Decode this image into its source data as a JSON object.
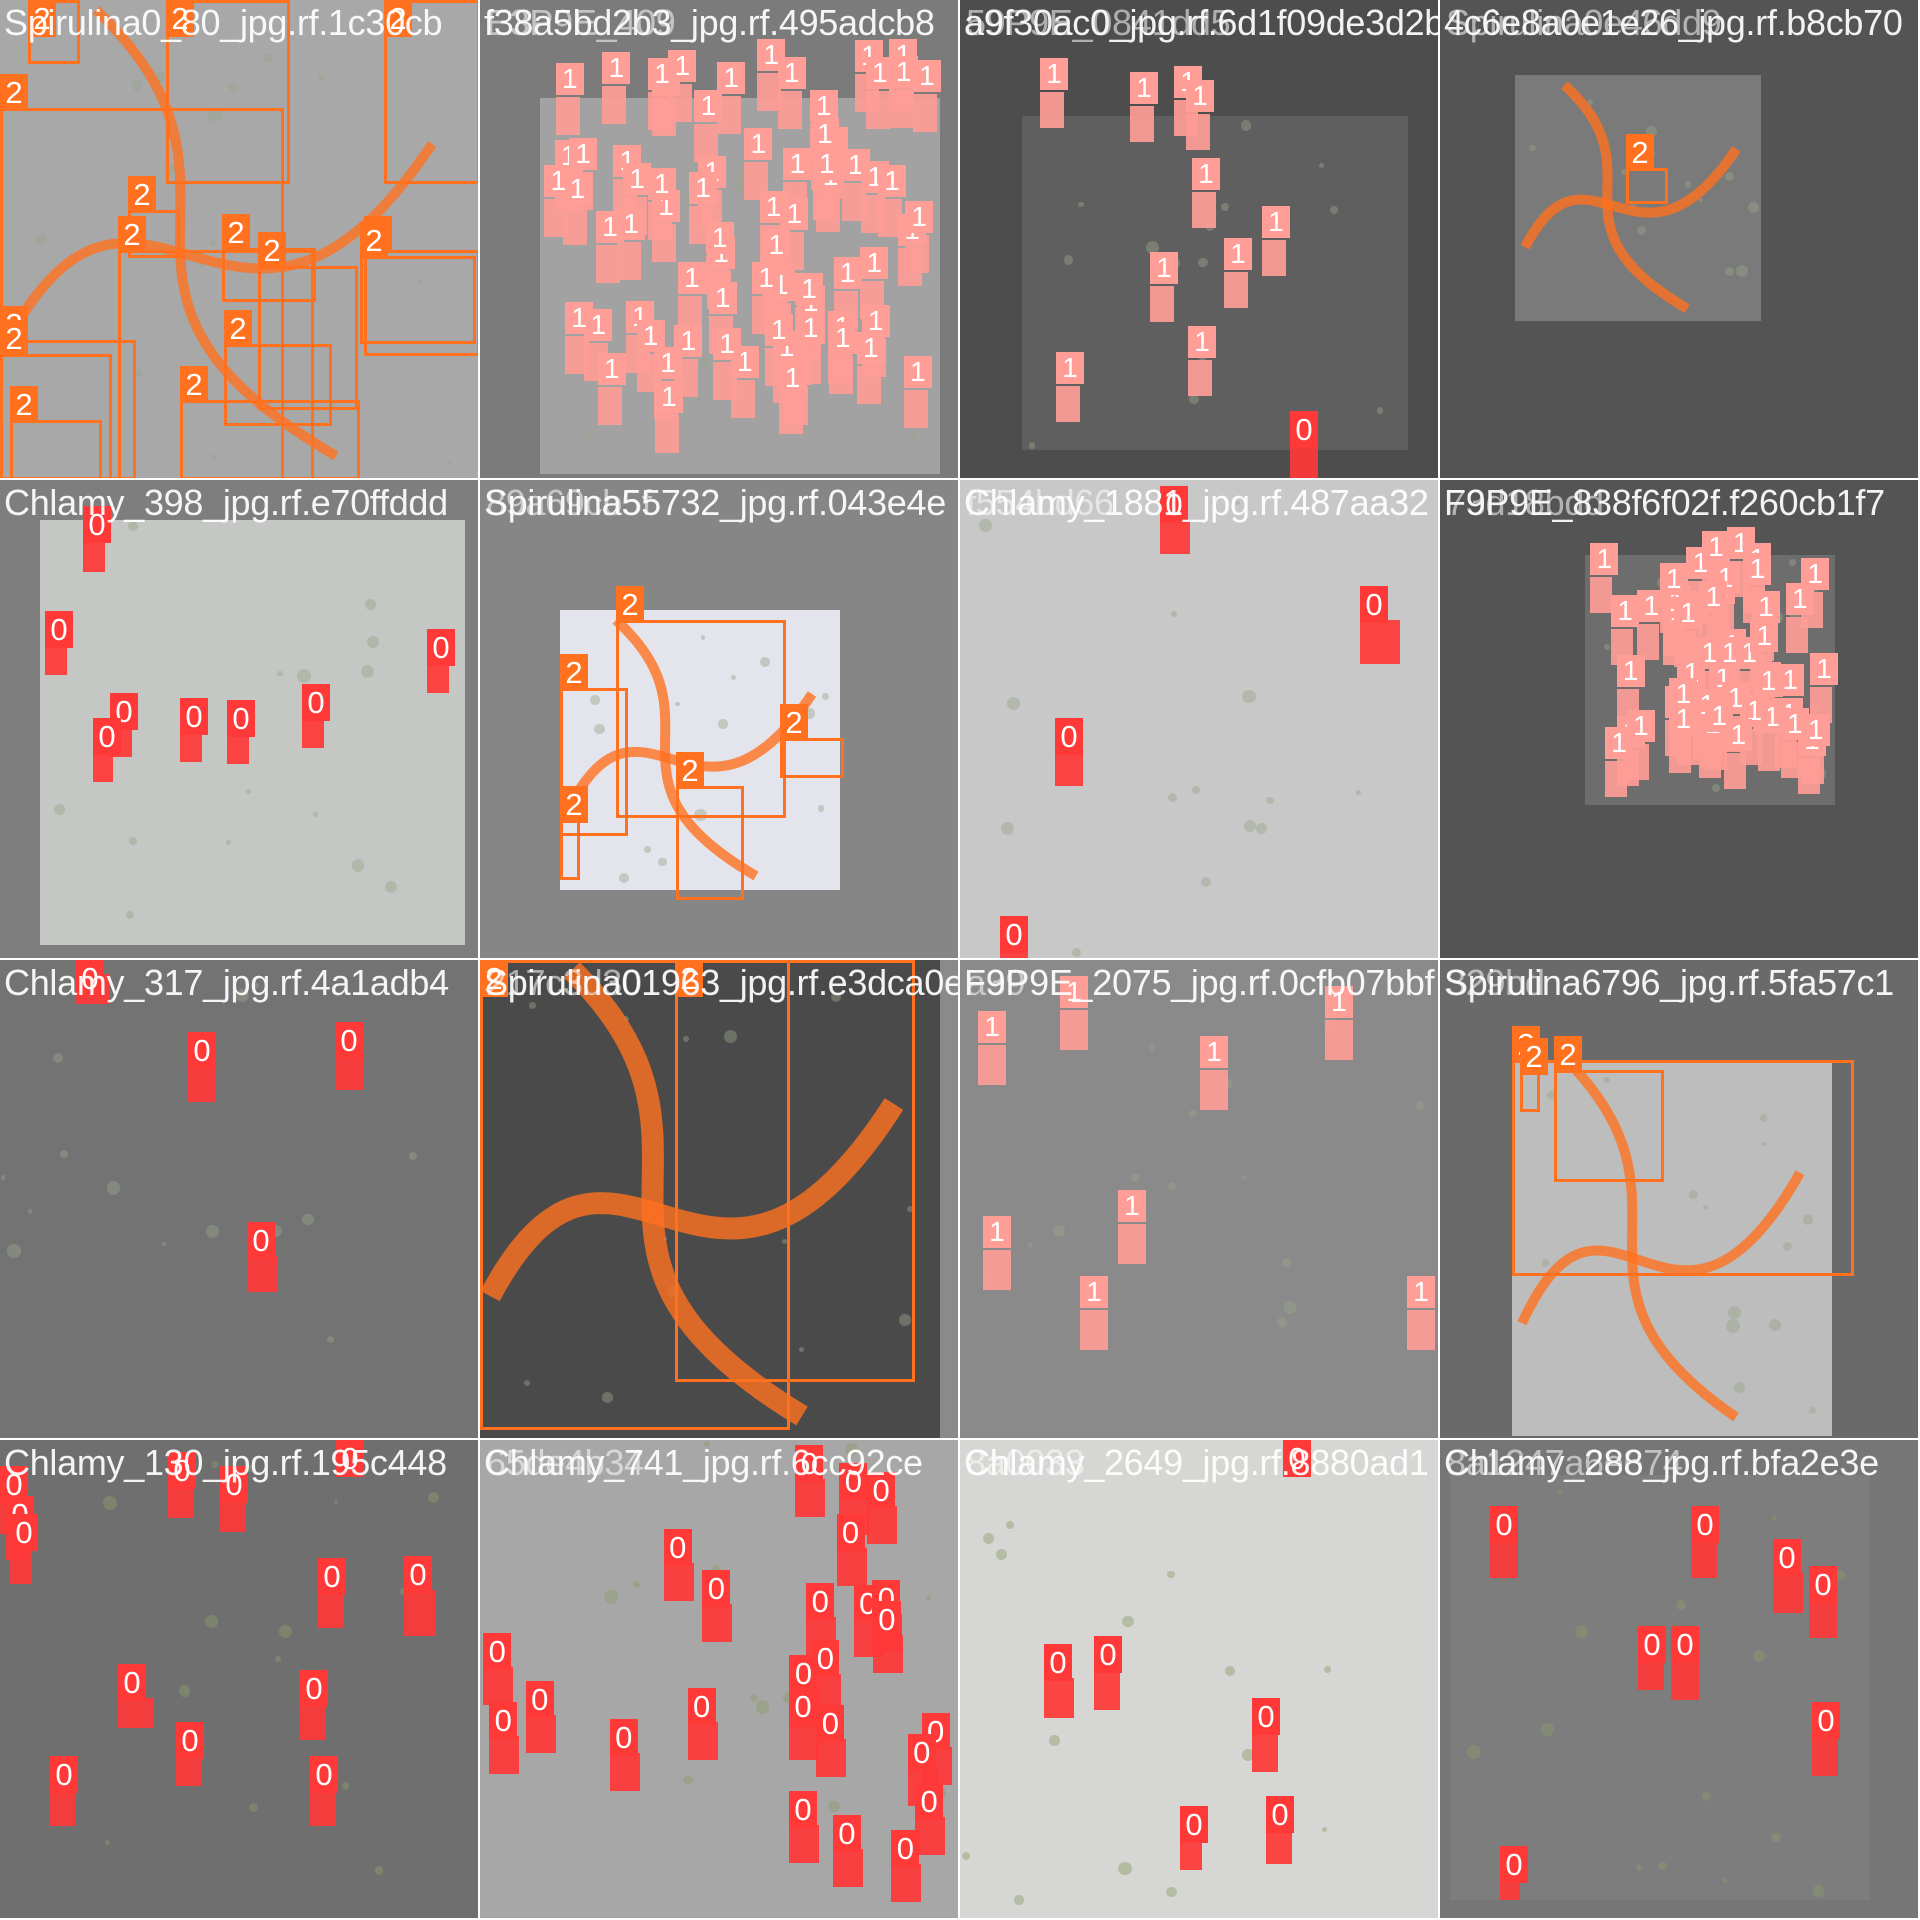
{
  "mosaic": {
    "colors": {
      "class_0": "#ff3838",
      "class_1": "#ff9d97",
      "class_2": "#ff701f",
      "label_text": "#ffffff",
      "title_text": "#ffffff"
    },
    "tiles": [
      {
        "title": "Spirulina0_80_jpg.rf.1c30cb",
        "title2": "",
        "bg": "#8a8a8a",
        "labels": [
          "2",
          "2",
          "2",
          "2",
          "2",
          "2",
          "2",
          "2",
          "2",
          "2",
          "2",
          "2",
          "2",
          "2",
          "2"
        ]
      },
      {
        "title": "f38a5bd2b3_jpg.rf.495adcb8",
        "title2": "E3P9E_409",
        "bg": "#7b7b7b",
        "labels": [
          "1",
          "1",
          "1",
          "1",
          "1",
          "1",
          "1",
          "1",
          "1",
          "1",
          "1",
          "1",
          "1",
          "1",
          "1",
          "1",
          "1",
          "1",
          "1",
          "1",
          "1",
          "1",
          "1",
          "1",
          "1",
          "1",
          "1",
          "1",
          "1",
          "1",
          "1",
          "1",
          "1",
          "1",
          "1",
          "1",
          "1",
          "1",
          "1",
          "1",
          "1",
          "1",
          "1",
          "1",
          "1",
          "1",
          "1",
          "1",
          "1",
          "1",
          "1",
          "1",
          "1",
          "1",
          "1",
          "1",
          "1",
          "1",
          "1",
          "1",
          "1",
          "1",
          "1",
          "1",
          "1",
          "1",
          "1",
          "1",
          "1",
          "1",
          "1",
          "1"
        ]
      },
      {
        "title": "a9f30ac0_jpg.rf.6d1f09de3d2b",
        "title2": "59P9E_0841dd5",
        "bg": "#4d4d4d",
        "labels": [
          "1",
          "1",
          "1",
          "1",
          "1",
          "1",
          "1",
          "1",
          "1",
          "1",
          "0"
        ]
      },
      {
        "title": "4c6e8a0e1e26_jpg.rf.b8cb70",
        "title2": "Spirulina0e46dd9",
        "bg": "#545454",
        "labels": [
          "2"
        ]
      },
      {
        "title": "Chlamy_398_jpg.rf.e70ffddd",
        "title2": "",
        "bg": "#7e7e7e",
        "labels": [
          "0",
          "0",
          "0",
          "0",
          "0",
          "0",
          "0",
          "0"
        ]
      },
      {
        "title": "Spirulina55732_jpg.rf.043e4e",
        "title2": "89a69cb5f",
        "bg": "#868686",
        "labels": [
          "2",
          "2",
          "2",
          "2",
          "2"
        ]
      },
      {
        "title": "Chlamy_1881_jpg.rf.487aa32",
        "title2": "f554bd66",
        "bg": "#8e8e8e",
        "labels": [
          "0",
          "0",
          "0",
          "0"
        ]
      },
      {
        "title": "F9P9E_838f6f02f.f260cb1f7",
        "title2": "73d18bdd",
        "bg": "#545454",
        "labels": [
          "1",
          "1",
          "1",
          "1",
          "1",
          "1",
          "1",
          "1",
          "1",
          "1",
          "1",
          "1",
          "1",
          "1",
          "1",
          "1",
          "1",
          "1",
          "1",
          "1",
          "1",
          "1",
          "1",
          "1",
          "1",
          "1",
          "1",
          "1",
          "1",
          "1",
          "1",
          "1",
          "1",
          "1",
          "1",
          "1",
          "1",
          "1",
          "1",
          "1",
          "1",
          "1",
          "1",
          "1",
          "1",
          "1",
          "1",
          "1",
          "1",
          "1"
        ]
      },
      {
        "title": "Chlamy_317_jpg.rf.4a1adb4",
        "title2": "",
        "bg": "#6e6e6e",
        "labels": [
          "0",
          "0",
          "0",
          "0"
        ]
      },
      {
        "title": "Spirulina01963_jpg.rf.e3dca0e",
        "title2": "217c3d30",
        "bg": "#8a8a8a",
        "labels": [
          "2",
          "2"
        ]
      },
      {
        "title": "F9P9E_2075_jpg.rf.0cfb07bbf",
        "title2": "a39",
        "bg": "#747474",
        "labels": [
          "1",
          "1",
          "1",
          "1",
          "1",
          "1",
          "1",
          "1"
        ]
      },
      {
        "title": "Spirulina6796_jpg.rf.5fa57c1",
        "title2": "329bd",
        "bg": "#6a6a6a",
        "labels": [
          "2",
          "2",
          "2"
        ]
      },
      {
        "title": "Chlamy_130_jpg.rf.195c448",
        "title2": "",
        "bg": "#6a6a6a",
        "labels": [
          "0",
          "0",
          "0",
          "0",
          "0",
          "0",
          "0",
          "0",
          "0",
          "0",
          "0",
          "0",
          "0"
        ]
      },
      {
        "title": "Chlamy_741_jpg.rf.6cc92ce",
        "title2": "65de4b34",
        "bg": "#8d8d8d",
        "labels": [
          "0",
          "0",
          "0",
          "0",
          "0",
          "0",
          "0",
          "0",
          "0",
          "0",
          "0",
          "0",
          "0",
          "0",
          "0",
          "0",
          "0",
          "0",
          "0",
          "0",
          "0",
          "0",
          "0",
          "0",
          "0"
        ]
      },
      {
        "title": "Chlamy_2649_jpg.rf.8880ad1",
        "title2": "8a0033",
        "bg": "#cfcfcf",
        "labels": [
          "0",
          "0",
          "0",
          "0",
          "0",
          "0"
        ]
      },
      {
        "title": "Chlamy_288_jpg.rf.bfa2e3e",
        "title2": "8a1247a6e674",
        "bg": "#767676",
        "labels": [
          "0",
          "0",
          "0",
          "0",
          "0",
          "0",
          "0",
          "0"
        ]
      }
    ]
  }
}
